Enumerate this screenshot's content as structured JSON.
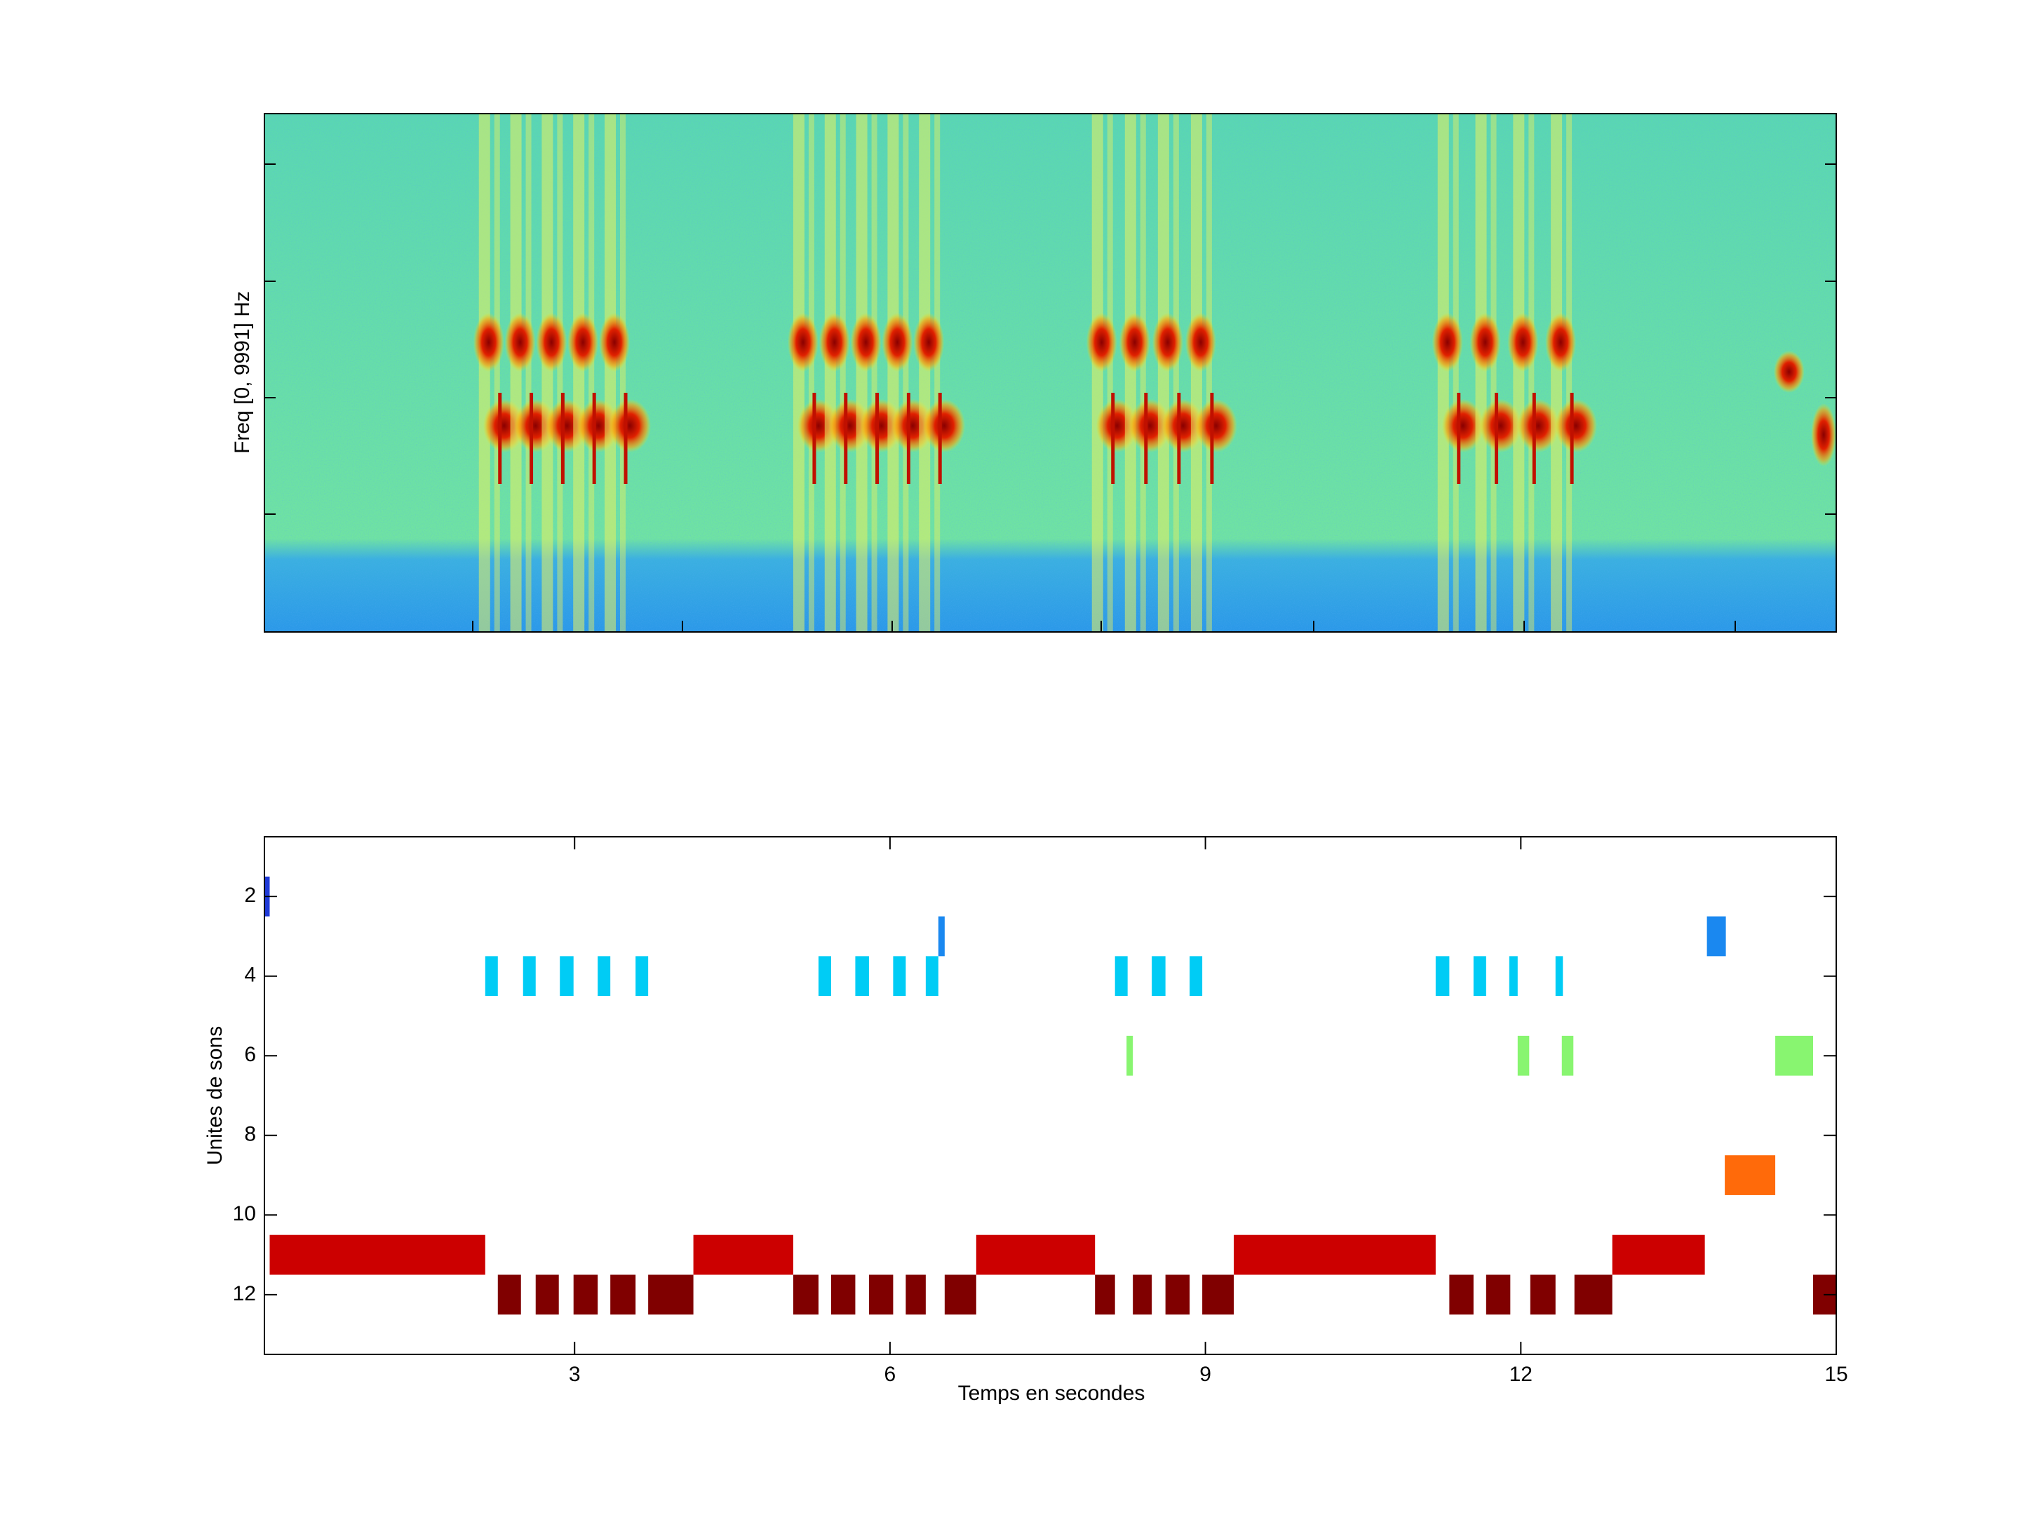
{
  "chart_data": [
    {
      "type": "spectrogram",
      "ylabel": "Freq [0, 9991] Hz"
    },
    {
      "type": "segments",
      "xlabel": "Temps en secondes",
      "ylabel": "Unites de sons",
      "xlim": [
        0.05,
        15
      ],
      "xticks": [
        3,
        6,
        9,
        12,
        15
      ],
      "ylim": [
        0.5,
        13.5
      ],
      "yticks": [
        2,
        4,
        6,
        8,
        10,
        12
      ],
      "y_reversed": true,
      "series": [
        {
          "y": 2,
          "color": "#1f3ad8",
          "segments": [
            [
              0.05,
              0.1
            ]
          ]
        },
        {
          "y": 3,
          "color": "#1a88f0",
          "segments": [
            [
              6.46,
              6.52
            ],
            [
              13.77,
              13.95
            ]
          ]
        },
        {
          "y": 4,
          "color": "#00ccf5",
          "segments": [
            [
              2.15,
              2.27
            ],
            [
              2.51,
              2.63
            ],
            [
              2.86,
              2.99
            ],
            [
              3.22,
              3.34
            ],
            [
              3.58,
              3.7
            ],
            [
              5.32,
              5.44
            ],
            [
              5.67,
              5.8
            ],
            [
              6.03,
              6.15
            ],
            [
              6.34,
              6.46
            ],
            [
              8.14,
              8.26
            ],
            [
              8.49,
              8.62
            ],
            [
              8.85,
              8.97
            ],
            [
              11.19,
              11.32
            ],
            [
              11.55,
              11.67
            ],
            [
              11.89,
              11.97
            ],
            [
              12.33,
              12.4
            ]
          ]
        },
        {
          "y": 6,
          "color": "#88f570",
          "segments": [
            [
              8.25,
              8.31
            ],
            [
              11.97,
              12.08
            ],
            [
              12.39,
              12.5
            ],
            [
              14.42,
              14.78
            ]
          ]
        },
        {
          "y": 9,
          "color": "#ff6a0a",
          "segments": [
            [
              13.94,
              14.42
            ]
          ]
        },
        {
          "y": 11,
          "color": "#cc0000",
          "segments": [
            [
              0.1,
              2.15
            ],
            [
              4.13,
              5.08
            ],
            [
              6.82,
              7.95
            ],
            [
              9.27,
              11.19
            ],
            [
              12.87,
              13.75
            ]
          ]
        },
        {
          "y": 12,
          "color": "#800000",
          "segments": [
            [
              2.27,
              2.49
            ],
            [
              2.63,
              2.85
            ],
            [
              2.99,
              3.22
            ],
            [
              3.34,
              3.58
            ],
            [
              3.7,
              4.13
            ],
            [
              5.08,
              5.32
            ],
            [
              5.44,
              5.67
            ],
            [
              5.8,
              6.03
            ],
            [
              6.15,
              6.34
            ],
            [
              6.52,
              6.82
            ],
            [
              7.95,
              8.14
            ],
            [
              8.31,
              8.49
            ],
            [
              8.62,
              8.85
            ],
            [
              8.97,
              9.27
            ],
            [
              11.32,
              11.55
            ],
            [
              11.67,
              11.9
            ],
            [
              12.09,
              12.33
            ],
            [
              12.51,
              12.87
            ],
            [
              14.78,
              15
            ]
          ]
        }
      ]
    }
  ]
}
